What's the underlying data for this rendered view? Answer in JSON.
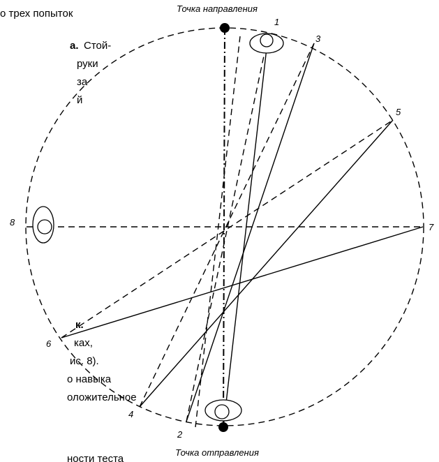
{
  "labels": {
    "top": "Точка направления",
    "bottom": "Точка отправления"
  },
  "points": [
    "1",
    "2",
    "3",
    "4",
    "5",
    "6",
    "7",
    "8"
  ],
  "text_fragments": [
    "о трех попыток",
    "а.",
    "Стой-",
    "руки",
    "за",
    "й",
    "к.",
    "ках,",
    "ис. 8).",
    "о навыка",
    "оложительное",
    "ности теста"
  ]
}
